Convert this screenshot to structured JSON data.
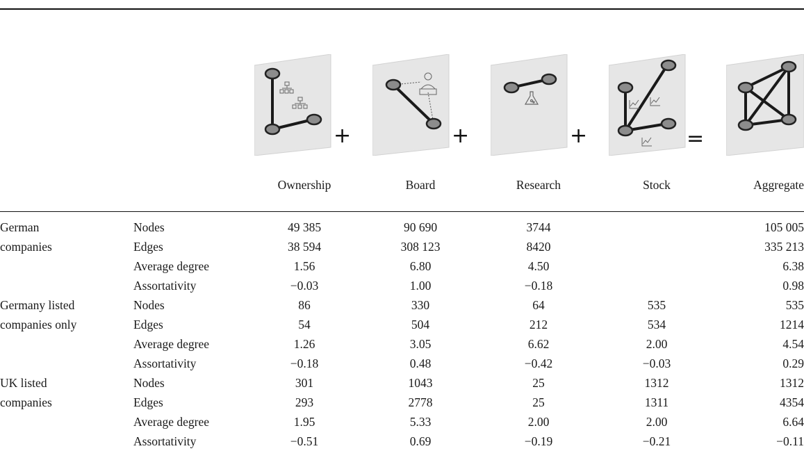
{
  "layers": [
    {
      "id": "ownership",
      "label": "Ownership",
      "operator": "+"
    },
    {
      "id": "board",
      "label": "Board",
      "operator": "+"
    },
    {
      "id": "research",
      "label": "Research",
      "operator": "+"
    },
    {
      "id": "stock",
      "label": "Stock",
      "operator": "="
    },
    {
      "id": "aggregate",
      "label": "Aggregate",
      "operator": ""
    }
  ],
  "groups": [
    {
      "name_lines": [
        "German",
        "companies"
      ],
      "rows": [
        {
          "metric": "Nodes",
          "values": [
            "49 385",
            "90 690",
            "3744",
            "",
            "105 005"
          ]
        },
        {
          "metric": "Edges",
          "values": [
            "38 594",
            "308 123",
            "8420",
            "",
            "335 213"
          ]
        },
        {
          "metric": "Average degree",
          "values": [
            "1.56",
            "6.80",
            "4.50",
            "",
            "6.38"
          ]
        },
        {
          "metric": "Assortativity",
          "values": [
            "−0.03",
            "1.00",
            "−0.18",
            "",
            "0.98"
          ]
        }
      ]
    },
    {
      "name_lines": [
        "Germany listed",
        "companies only"
      ],
      "rows": [
        {
          "metric": "Nodes",
          "values": [
            "86",
            "330",
            "64",
            "535",
            "535"
          ]
        },
        {
          "metric": "Edges",
          "values": [
            "54",
            "504",
            "212",
            "534",
            "1214"
          ]
        },
        {
          "metric": "Average degree",
          "values": [
            "1.26",
            "3.05",
            "6.62",
            "2.00",
            "4.54"
          ]
        },
        {
          "metric": "Assortativity",
          "values": [
            "−0.18",
            "0.48",
            "−0.42",
            "−0.03",
            "0.29"
          ]
        }
      ]
    },
    {
      "name_lines": [
        "UK listed",
        "companies"
      ],
      "rows": [
        {
          "metric": "Nodes",
          "values": [
            "301",
            "1043",
            "25",
            "1312",
            "1312"
          ]
        },
        {
          "metric": "Edges",
          "values": [
            "293",
            "2778",
            "25",
            "1311",
            "4354"
          ]
        },
        {
          "metric": "Average degree",
          "values": [
            "1.95",
            "5.33",
            "2.00",
            "2.00",
            "6.64"
          ]
        },
        {
          "metric": "Assortativity",
          "values": [
            "−0.51",
            "0.69",
            "−0.19",
            "−0.21",
            "−0.11"
          ]
        }
      ]
    }
  ],
  "icons": [
    "ownership-network-icon",
    "board-network-icon",
    "research-network-icon",
    "stock-network-icon",
    "aggregate-network-icon"
  ],
  "colors": {
    "panel": "#e6e6e6",
    "panel_edge": "#d2d2d2",
    "node_fill": "#8c8c8c",
    "node_stroke": "#222222",
    "edge": "#1a1a1a",
    "rule": "#111111"
  }
}
